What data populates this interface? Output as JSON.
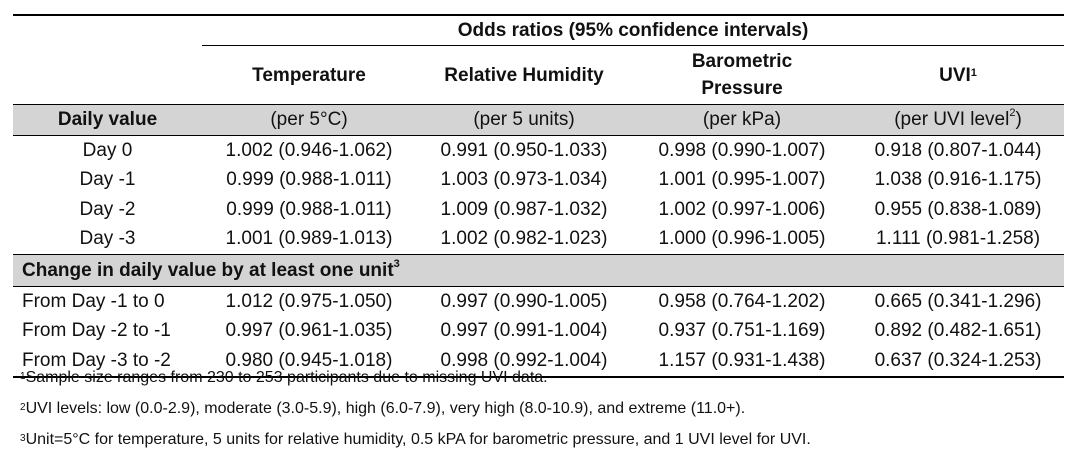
{
  "table": {
    "super_header": "Odds ratios (95% confidence intervals)",
    "columns": [
      {
        "name": "Temperature",
        "unit": "(per 5°C)"
      },
      {
        "name": "Relative Humidity",
        "unit": "(per 5 units)"
      },
      {
        "name": "Barometric Pressure",
        "unit": "(per kPa)"
      },
      {
        "name": "UVI",
        "name_sup": "1",
        "unit": "(per UVI level",
        "unit_sup": "2",
        "unit_close": ")"
      }
    ],
    "section1_label": "Daily value",
    "section1_rows": [
      {
        "label": "Day 0",
        "values": [
          "1.002 (0.946-1.062)",
          "0.991 (0.950-1.033)",
          "0.998 (0.990-1.007)",
          "0.918 (0.807-1.044)"
        ]
      },
      {
        "label": "Day -1",
        "values": [
          "0.999 (0.988-1.011)",
          "1.003 (0.973-1.034)",
          "1.001 (0.995-1.007)",
          "1.038 (0.916-1.175)"
        ]
      },
      {
        "label": "Day -2",
        "values": [
          "0.999 (0.988-1.011)",
          "1.009 (0.987-1.032)",
          "1.002 (0.997-1.006)",
          "0.955 (0.838-1.089)"
        ]
      },
      {
        "label": "Day -3",
        "values": [
          "1.001 (0.989-1.013)",
          "1.002 (0.982-1.023)",
          "1.000 (0.996-1.005)",
          "1.111 (0.981-1.258)"
        ]
      }
    ],
    "section2_label": "Change in daily value by at least one unit",
    "section2_sup": "3",
    "section2_rows": [
      {
        "label": "From Day -1 to 0",
        "values": [
          "1.012 (0.975-1.050)",
          "0.997 (0.990-1.005)",
          "0.958 (0.764-1.202)",
          "0.665 (0.341-1.296)"
        ]
      },
      {
        "label": "From Day -2 to -1",
        "values": [
          "0.997 (0.961-1.035)",
          "0.997 (0.991-1.004)",
          "0.937 (0.751-1.169)",
          "0.892 (0.482-1.651)"
        ]
      },
      {
        "label": "From Day -3 to -2",
        "values": [
          "0.980 (0.945-1.018)",
          "0.998 (0.992-1.004)",
          "1.157 (0.931-1.438)",
          "0.637 (0.324-1.253)"
        ]
      }
    ]
  },
  "footnotes": [
    {
      "mark": "1",
      "text": "Sample size ranges from 230 to 253 participants due to missing UVI data."
    },
    {
      "mark": "2",
      "text": "UVI levels: low (0.0-2.9), moderate (3.0-5.9), high (6.0-7.9), very high (8.0-10.9), and extreme (11.0+)."
    },
    {
      "mark": "3",
      "text": "Unit=5°C for temperature, 5 units for relative humidity, 0.5 kPA for barometric pressure, and 1 UVI level for UVI."
    }
  ]
}
